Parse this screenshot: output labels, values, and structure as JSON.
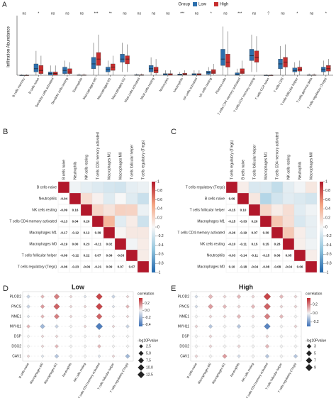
{
  "chart_data": [
    {
      "type": "box",
      "panel": "A",
      "legend_title": "Group",
      "y_label": "Infiltration Abundance",
      "categories": [
        "B cells memory",
        "B cells naive",
        "Dendritic cells activated",
        "Dendritic cells resting",
        "Eosinophils",
        "Macrophages M0",
        "Macrophages M1",
        "Macrophages M2",
        "Mast cells activated",
        "Mast cells resting",
        "Monocytes",
        "Neutrophils",
        "NK cells activated",
        "NK cells resting",
        "Plasma cells",
        "T cells CD4 memory activated",
        "T cells CD4 memory resting",
        "T cells CD4 naive",
        "T cells CD8",
        "T cells follicular helper",
        "T cells gamma delta",
        "T cells regulatory (Tregs)"
      ],
      "significance": [
        "ns",
        "*",
        "ns",
        "ns",
        "ns",
        "***",
        "**",
        "ns",
        "ns",
        "ns",
        "ns",
        "***",
        "ns",
        "*",
        "ns",
        "***",
        "ns",
        "?",
        "ns",
        "*",
        "ns",
        "*"
      ],
      "ylim": [
        0,
        0.35
      ],
      "series": [
        {
          "name": "Low",
          "color": "#2c6fad",
          "values": [
            [
              0,
              0,
              0,
              0,
              0.005
            ],
            [
              0,
              0.02,
              0.04,
              0.07,
              0.15
            ],
            [
              0,
              0,
              0.01,
              0.02,
              0.06
            ],
            [
              0,
              0.01,
              0.03,
              0.05,
              0.09
            ],
            [
              0,
              0,
              0,
              0.002,
              0.01
            ],
            [
              0,
              0.04,
              0.07,
              0.11,
              0.2
            ],
            [
              0,
              0.02,
              0.035,
              0.05,
              0.09
            ],
            [
              0.02,
              0.08,
              0.1,
              0.13,
              0.2
            ],
            [
              0,
              0,
              0,
              0.003,
              0.01
            ],
            [
              0,
              0.02,
              0.04,
              0.06,
              0.11
            ],
            [
              0,
              0,
              0.005,
              0.01,
              0.03
            ],
            [
              0,
              0,
              0.003,
              0.008,
              0.02
            ],
            [
              0,
              0,
              0.004,
              0.01,
              0.03
            ],
            [
              0,
              0.005,
              0.015,
              0.025,
              0.05
            ],
            [
              0,
              0.06,
              0.1,
              0.16,
              0.3
            ],
            [
              0,
              0,
              0.005,
              0.015,
              0.04
            ],
            [
              0.02,
              0.09,
              0.12,
              0.16,
              0.25
            ],
            [
              0,
              0,
              0,
              0,
              0.005
            ],
            [
              0,
              0.04,
              0.07,
              0.1,
              0.18
            ],
            [
              0,
              0.02,
              0.03,
              0.045,
              0.08
            ],
            [
              0,
              0,
              0,
              0.002,
              0.01
            ],
            [
              0,
              0.02,
              0.035,
              0.05,
              0.09
            ]
          ]
        },
        {
          "name": "High",
          "color": "#c62d2d",
          "values": [
            [
              0,
              0,
              0,
              0,
              0.005
            ],
            [
              0,
              0.01,
              0.03,
              0.06,
              0.12
            ],
            [
              0,
              0,
              0.01,
              0.02,
              0.06
            ],
            [
              0,
              0.01,
              0.02,
              0.04,
              0.08
            ],
            [
              0,
              0,
              0,
              0.002,
              0.01
            ],
            [
              0,
              0.06,
              0.1,
              0.14,
              0.25
            ],
            [
              0,
              0.03,
              0.05,
              0.07,
              0.12
            ],
            [
              0.02,
              0.07,
              0.1,
              0.12,
              0.19
            ],
            [
              0,
              0,
              0,
              0.003,
              0.01
            ],
            [
              0,
              0.015,
              0.03,
              0.05,
              0.1
            ],
            [
              0,
              0,
              0.005,
              0.01,
              0.03
            ],
            [
              0,
              0.002,
              0.006,
              0.012,
              0.03
            ],
            [
              0,
              0,
              0.004,
              0.01,
              0.03
            ],
            [
              0,
              0.01,
              0.02,
              0.035,
              0.07
            ],
            [
              0,
              0.05,
              0.08,
              0.13,
              0.27
            ],
            [
              0,
              0.01,
              0.02,
              0.04,
              0.09
            ],
            [
              0.02,
              0.08,
              0.11,
              0.15,
              0.24
            ],
            [
              0,
              0,
              0,
              0,
              0.005
            ],
            [
              0,
              0.05,
              0.08,
              0.11,
              0.19
            ],
            [
              0,
              0.025,
              0.035,
              0.05,
              0.09
            ],
            [
              0,
              0,
              0,
              0.002,
              0.01
            ],
            [
              0,
              0.025,
              0.04,
              0.06,
              0.1
            ]
          ]
        }
      ]
    },
    {
      "type": "corrplot",
      "panel": "B",
      "labels": [
        "B cells naive",
        "Neutrophils",
        "NK cells resting",
        "T cells CD4 memory activated",
        "Macrophages M1",
        "Macrophages M0",
        "T cells follicular helper",
        "T cells regulatory (Tregs)"
      ],
      "values": [
        [
          -0.04
        ],
        [
          -0.09,
          0.16
        ],
        [
          -0.13,
          0.04,
          0.2
        ],
        [
          -0.17,
          -0.12,
          0.12,
          0.39
        ],
        [
          -0.19,
          0,
          0.23,
          -0.11,
          0.02
        ],
        [
          -0.09,
          -0.12,
          0.22,
          0.07,
          0.09,
          -0.03
        ],
        [
          -0.06,
          -0.23,
          -0.06,
          -0.21,
          0.09,
          0.07,
          0.07
        ]
      ],
      "value_labels": [
        [
          "-0.04"
        ],
        [
          "-0.09",
          "0.16"
        ],
        [
          "-0.13",
          "0.04",
          "0.20"
        ],
        [
          "-0.17",
          "-0.12",
          "0.12",
          "0.39"
        ],
        [
          "-0.19",
          "0.00",
          "0.23",
          "-0.11",
          "0.02"
        ],
        [
          "-0.09",
          "-0.12",
          "0.22",
          "0.07",
          "0.09",
          "-0.03"
        ],
        [
          "-0.06",
          "-0.23",
          "-0.06",
          "-0.21",
          "0.09",
          "0.07",
          "0.07"
        ]
      ],
      "ylim": [
        -1,
        1
      ],
      "yticks": [
        1,
        0.8,
        0.6,
        0.4,
        0.2,
        0,
        -0.2,
        -0.4,
        -0.6,
        -0.8,
        -1
      ],
      "colors": [
        "#2166ac",
        "#92c5de",
        "#f7f7f7",
        "#f4a582",
        "#b2182b"
      ]
    },
    {
      "type": "corrplot",
      "panel": "C",
      "labels": [
        "T cells regulatory (Tregs)",
        "B cells naive",
        "T cells follicular helper",
        "Macrophages M1",
        "T cells CD4 memory activated",
        "NK cells resting",
        "Neutrophils",
        "Macrophages M0"
      ],
      "values": [
        [
          0.06
        ],
        [
          -0.15,
          0.1
        ],
        [
          -0.15,
          -0.33,
          0.2
        ],
        [
          -0.26,
          -0.19,
          0.07,
          0.3
        ],
        [
          -0.1,
          -0.11,
          0.15,
          0.15,
          0.28
        ],
        [
          -0.03,
          -0.14,
          -0.11,
          -0.15,
          0.06,
          0.05
        ],
        [
          0.1,
          -0.18,
          -0.04,
          -0.08,
          -0.08,
          -0.04,
          0.06
        ]
      ],
      "value_labels": [
        [
          "0.06"
        ],
        [
          "-0.15",
          "0.10"
        ],
        [
          "-0.15",
          "-0.33",
          "0.20"
        ],
        [
          "-0.26",
          "-0.19",
          "0.07",
          "0.30"
        ],
        [
          "-0.10",
          "-0.11",
          "0.15",
          "0.15",
          "0.28"
        ],
        [
          "-0.03",
          "-0.14",
          "-0.11",
          "-0.15",
          "0.06",
          "0.05"
        ],
        [
          "0.10",
          "-0.18",
          "-0.04",
          "-0.08",
          "-0.08",
          "-0.04",
          "0.06"
        ]
      ],
      "ylim": [
        -1,
        1
      ],
      "yticks": [
        1,
        0.8,
        0.6,
        0.4,
        0.2,
        0,
        -0.2,
        -0.4,
        -0.6,
        -0.8,
        -1
      ],
      "colors": [
        "#2166ac",
        "#92c5de",
        "#f7f7f7",
        "#f4a582",
        "#b2182b"
      ]
    },
    {
      "type": "dotplot",
      "panel": "D",
      "title": "Low",
      "rows": [
        "PLOD2",
        "PNCS",
        "NME1",
        "MYH11",
        "DSP",
        "DSG2",
        "CAV1"
      ],
      "columns": [
        "B cells naive",
        "Macrophages M0",
        "Macrophages M1",
        "Neutrophils",
        "NK cells resting",
        "T cells CD4 memory activated",
        "T cells follicular helper",
        "T cells regulatory (Tregs)"
      ],
      "values": [
        [
          -0.1,
          0.1,
          0.2,
          0.05,
          -0.05,
          0.3,
          -0.1,
          0.05
        ],
        [
          -0.1,
          0.15,
          0.25,
          0.05,
          0.05,
          0.3,
          -0.05,
          0.1
        ],
        [
          -0.05,
          0.1,
          0.2,
          0.05,
          0,
          0.25,
          0,
          0.05
        ],
        [
          0.1,
          -0.2,
          -0.1,
          0,
          0.05,
          -0.4,
          0.05,
          -0.1
        ],
        [
          0,
          0.05,
          0.05,
          0,
          0,
          0.05,
          0,
          0
        ],
        [
          0,
          0.05,
          0.1,
          0,
          0,
          0.1,
          0,
          0
        ],
        [
          0.05,
          -0.05,
          -0.15,
          0,
          0,
          -0.05,
          0.05,
          -0.2
        ]
      ],
      "sizes": [
        [
          2,
          2,
          7,
          1,
          1,
          10,
          2,
          1
        ],
        [
          2,
          3,
          9,
          1,
          1,
          11,
          1,
          2
        ],
        [
          1,
          2,
          6,
          1,
          1,
          8,
          1,
          1
        ],
        [
          2,
          5,
          2,
          1,
          1,
          12,
          1,
          2
        ],
        [
          1,
          1,
          1,
          1,
          1,
          1,
          1,
          1
        ],
        [
          1,
          1,
          2,
          1,
          1,
          2,
          1,
          1
        ],
        [
          1,
          1,
          3,
          1,
          1,
          1,
          1,
          4
        ]
      ],
      "color_title": "correlation",
      "color_lim": [
        -0.45,
        0.35
      ],
      "color_ticks": [
        0.2,
        {
          "value": 0,
          "label": "0.0"
        },
        -0.2,
        -0.4
      ],
      "colors": [
        "#3b6fb6",
        "#f2f2f2",
        "#c0282d"
      ],
      "size_title": "-log10Pvalue",
      "size_lim": [
        0,
        12.5
      ],
      "size_ticks": [
        2.5,
        {
          "value": 5,
          "label": "5.0"
        },
        7.5,
        {
          "value": 10,
          "label": "10.0"
        },
        12.5
      ]
    },
    {
      "type": "dotplot",
      "panel": "E",
      "title": "High",
      "rows": [
        "PLOD2",
        "PNCS",
        "NME1",
        "MYH11",
        "DSP",
        "DSG2",
        "CAV1"
      ],
      "columns": [
        "B cells naive",
        "Macrophages M0",
        "Macrophages M1",
        "Neutrophils",
        "NK cells resting",
        "T cells CD4 memory activated",
        "T cells follicular helper",
        "T cells regulatory (Tregs)"
      ],
      "values": [
        [
          -0.05,
          0.1,
          0.05,
          0.1,
          0.05,
          0.3,
          0.1,
          0.05
        ],
        [
          -0.05,
          0.15,
          0.1,
          0.05,
          0.1,
          0.25,
          0.05,
          0.05
        ],
        [
          0,
          0.05,
          0.05,
          0.1,
          0.05,
          0.2,
          0.1,
          0
        ],
        [
          0.05,
          -0.1,
          0,
          -0.1,
          0,
          -0.25,
          0,
          0.05
        ],
        [
          0,
          0.05,
          0,
          0,
          0,
          0.05,
          0,
          0
        ],
        [
          0,
          0.05,
          0,
          0.05,
          0,
          0.1,
          0,
          0
        ],
        [
          0.05,
          0,
          0.15,
          -0.05,
          0,
          -0.1,
          0,
          -0.1
        ]
      ],
      "sizes": [
        [
          1,
          3,
          1,
          2,
          1,
          9,
          2,
          1
        ],
        [
          1,
          4,
          2,
          1,
          2,
          8,
          1,
          1
        ],
        [
          1,
          1,
          1,
          2,
          1,
          6,
          2,
          1
        ],
        [
          1,
          2,
          1,
          2,
          1,
          7,
          1,
          1
        ],
        [
          1,
          1,
          1,
          1,
          1,
          1,
          1,
          1
        ],
        [
          1,
          1,
          1,
          1,
          1,
          2,
          1,
          1
        ],
        [
          1,
          1,
          3,
          1,
          1,
          2,
          1,
          2
        ]
      ],
      "color_title": "correlation",
      "color_lim": [
        -0.3,
        0.35
      ],
      "color_ticks": [
        0.2,
        {
          "value": 0,
          "label": "0.0"
        },
        -0.2
      ],
      "colors": [
        "#3b6fb6",
        "#f2f2f2",
        "#c0282d"
      ],
      "size_title": "-log10Pvalue",
      "size_lim": [
        0,
        9
      ],
      "size_ticks": [
        3,
        5,
        7,
        9
      ]
    }
  ]
}
